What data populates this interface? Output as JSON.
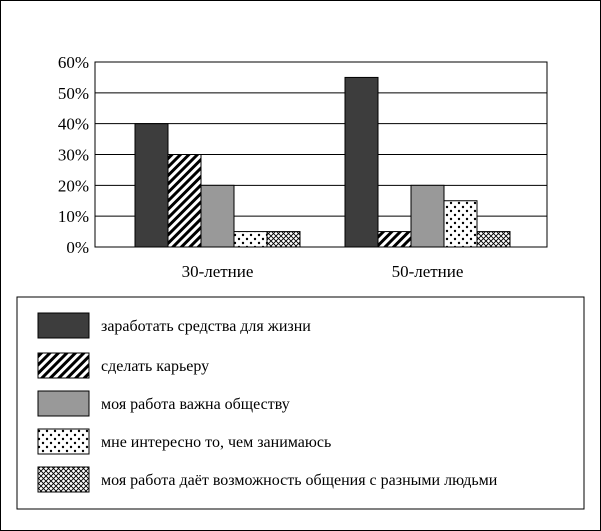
{
  "chart_data": {
    "type": "bar",
    "categories": [
      "30-летние",
      "50-летние"
    ],
    "series": [
      {
        "name": "заработать средства для жизни",
        "pattern": "solid-dark",
        "color": "#3d3d3d",
        "values": [
          40,
          55
        ]
      },
      {
        "name": "сделать карьеру",
        "pattern": "diagonal-hatch",
        "color": "#000000",
        "values": [
          30,
          5
        ]
      },
      {
        "name": "моя работа важна обществу",
        "pattern": "solid-gray",
        "color": "#999999",
        "values": [
          20,
          20
        ]
      },
      {
        "name": "мне интересно то, чем занимаюсь",
        "pattern": "dots",
        "color": "#000000",
        "values": [
          5,
          15
        ]
      },
      {
        "name": "моя работа даёт возможность общения с разными людьми",
        "pattern": "crosshatch",
        "color": "#000000",
        "values": [
          5,
          5
        ]
      }
    ],
    "ylim": [
      0,
      60
    ],
    "yticks": [
      "0%",
      "10%",
      "20%",
      "30%",
      "40%",
      "50%",
      "60%"
    ],
    "grid": true,
    "legend_position": "bottom"
  }
}
